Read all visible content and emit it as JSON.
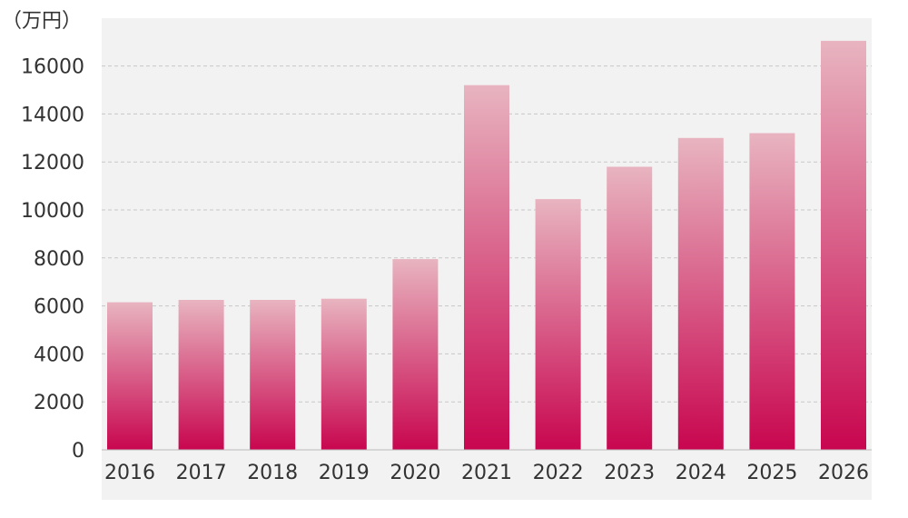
{
  "chart_data": {
    "type": "bar",
    "unit_label": "（万円）",
    "categories": [
      "2016",
      "2017",
      "2018",
      "2019",
      "2020",
      "2021",
      "2022",
      "2023",
      "2024",
      "2025",
      "2026"
    ],
    "values": [
      6150,
      6250,
      6250,
      6300,
      7950,
      15200,
      10450,
      11800,
      13000,
      13200,
      17050
    ],
    "yticks": [
      "0",
      "2000",
      "4000",
      "6000",
      "8000",
      "10000",
      "12000",
      "14000",
      "16000"
    ],
    "ylim": [
      0,
      18000
    ],
    "grid": true,
    "colors": {
      "plot_background": "#f2f2f2",
      "bar_top": "#e8b4c0",
      "bar_bottom": "#c8064f",
      "grid": "#c8c8c8",
      "axis": "#bbbbbb"
    }
  }
}
